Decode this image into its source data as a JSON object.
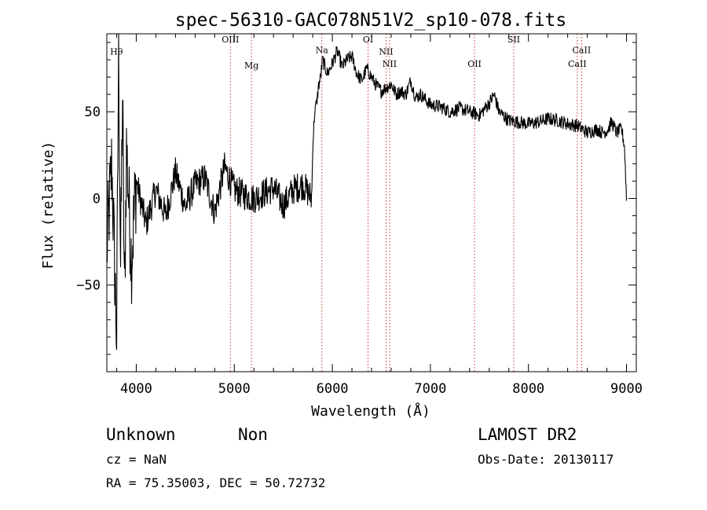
{
  "chart_data": {
    "type": "line",
    "title": "spec-56310-GAC078N51V2_sp10-078.fits",
    "xlabel": "Wavelength (Å)",
    "ylabel": "Flux (relative)",
    "xlim": [
      3700,
      9100
    ],
    "ylim": [
      -100,
      95
    ],
    "xticks": [
      4000,
      5000,
      6000,
      7000,
      8000,
      9000
    ],
    "yticks": [
      -50,
      0,
      50
    ],
    "grid": false,
    "legend": "none",
    "series": [
      {
        "x": [
          3700,
          3750,
          3800,
          3820,
          3840,
          3860,
          3880,
          3900,
          3950,
          4000,
          4100,
          4200,
          4300,
          4400,
          4500,
          4600,
          4700,
          4800,
          4900,
          5000,
          5100,
          5200,
          5300,
          5400,
          5500,
          5600,
          5700,
          5790,
          5800,
          5820,
          5840,
          5860,
          5880,
          5900,
          5950,
          6000,
          6050,
          6100,
          6150,
          6200,
          6250,
          6300,
          6350,
          6400,
          6450,
          6500,
          6550,
          6600,
          6650,
          6700,
          6750,
          6800,
          6850,
          6900,
          6950,
          7000,
          7100,
          7200,
          7300,
          7400,
          7500,
          7600,
          7650,
          7700,
          7800,
          7900,
          8000,
          8100,
          8200,
          8300,
          8400,
          8500,
          8600,
          8700,
          8750,
          8800,
          8850,
          8900,
          8950,
          8980,
          9000
        ],
        "y": [
          -30,
          20,
          -80,
          90,
          -40,
          60,
          -60,
          30,
          -35,
          10,
          -15,
          5,
          -10,
          15,
          -5,
          8,
          12,
          -8,
          18,
          5,
          2,
          0,
          3,
          6,
          -4,
          5,
          8,
          0,
          30,
          50,
          55,
          65,
          70,
          80,
          72,
          78,
          85,
          76,
          80,
          82,
          72,
          68,
          75,
          70,
          65,
          62,
          64,
          66,
          60,
          62,
          60,
          68,
          58,
          60,
          57,
          54,
          53,
          50,
          52,
          50,
          48,
          55,
          60,
          50,
          45,
          44,
          43,
          44,
          46,
          45,
          43,
          42,
          38,
          40,
          38,
          39,
          44,
          38,
          40,
          30,
          0
        ]
      }
    ],
    "lines": [
      {
        "label": "Hθ",
        "x": 3798,
        "label_flux": 83
      },
      {
        "label": "OIII",
        "x": 4960,
        "label_flux": 90
      },
      {
        "label": "Mg",
        "x": 5175,
        "label_flux": 75
      },
      {
        "label": "Na",
        "x": 5893,
        "label_flux": 84
      },
      {
        "label": "OI",
        "x": 6364,
        "label_flux": 90
      },
      {
        "label": "NII",
        "x": 6548,
        "label_flux": 83
      },
      {
        "label": "NII",
        "x": 6584,
        "label_flux": 76
      },
      {
        "label": "OII",
        "x": 7450,
        "label_flux": 76
      },
      {
        "label": "SII",
        "x": 7850,
        "label_flux": 90
      },
      {
        "label": "CaII",
        "x": 8498,
        "label_flux": 76
      },
      {
        "label": "CaII",
        "x": 8542,
        "label_flux": 84
      }
    ]
  },
  "footer": {
    "class_label": "Unknown",
    "subclass_label": "Non",
    "survey": "LAMOST DR2",
    "cz": "cz = NaN",
    "obs_date": "Obs-Date: 20130117",
    "coords": "RA =  75.35003, DEC =  50.72732"
  },
  "colors": {
    "spectrum": "#000000",
    "line_marker": "#cc3333",
    "background": "#ffffff"
  }
}
